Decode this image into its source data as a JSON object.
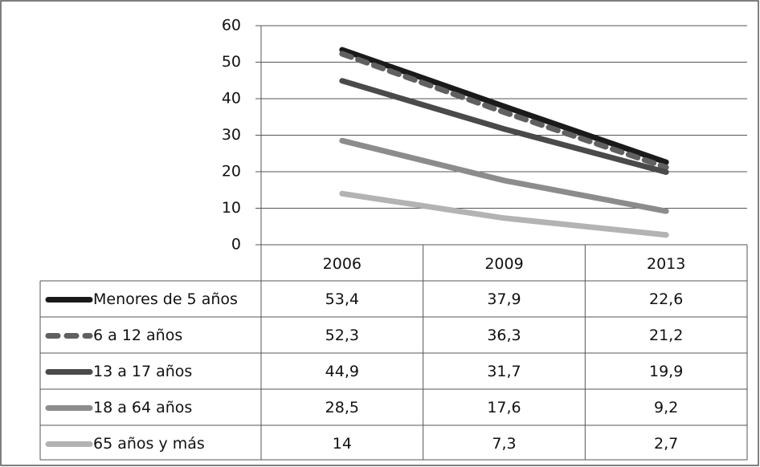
{
  "chart_data": {
    "type": "line",
    "categories": [
      "2006",
      "2009",
      "2013"
    ],
    "series": [
      {
        "name": "Menores de 5 años",
        "color": "#1a1a1a",
        "dash": false,
        "values": [
          53.4,
          37.9,
          22.6
        ],
        "value_labels": [
          "53,4",
          "37,9",
          "22,6"
        ]
      },
      {
        "name": "6 a 12 años",
        "color": "#606060",
        "dash": true,
        "values": [
          52.3,
          36.3,
          21.2
        ],
        "value_labels": [
          "52,3",
          "36,3",
          "21,2"
        ]
      },
      {
        "name": "13 a 17 años",
        "color": "#4a4a4a",
        "dash": false,
        "values": [
          44.9,
          31.7,
          19.9
        ],
        "value_labels": [
          "44,9",
          "31,7",
          "19,9"
        ]
      },
      {
        "name": "18 a 64 años",
        "color": "#8c8c8c",
        "dash": false,
        "values": [
          28.5,
          17.6,
          9.2
        ],
        "value_labels": [
          "28,5",
          "17,6",
          "9,2"
        ]
      },
      {
        "name": "65 años y más",
        "color": "#b3b3b3",
        "dash": false,
        "values": [
          14,
          7.3,
          2.7
        ],
        "value_labels": [
          "14",
          "7,3",
          "2,7"
        ]
      }
    ],
    "ylim": [
      0,
      60
    ],
    "yticks": [
      0,
      10,
      20,
      30,
      40,
      50,
      60
    ],
    "grid": true,
    "data_table": true
  }
}
